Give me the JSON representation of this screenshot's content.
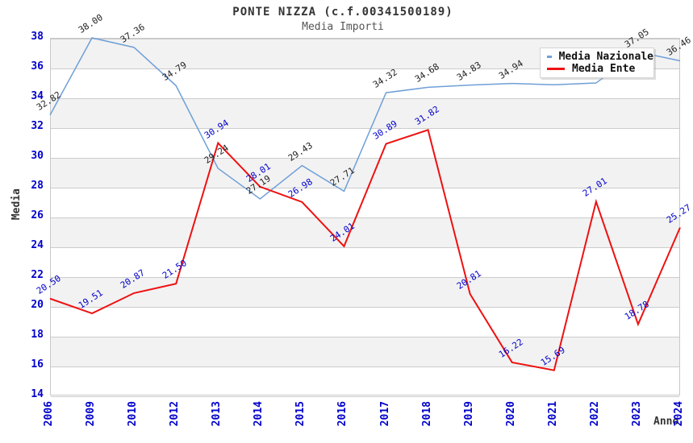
{
  "chart_data": {
    "type": "line",
    "title": "PONTE NIZZA (c.f.00341500189)",
    "subtitle": "Media Importi",
    "xlabel": "Anno",
    "ylabel": "Media",
    "ylim": [
      14,
      38
    ],
    "y_tick_step": 2,
    "y_ticks": [
      38,
      36,
      34,
      32,
      30,
      28,
      26,
      24,
      22,
      20,
      18,
      16,
      14
    ],
    "x": [
      "2006",
      "2009",
      "2010",
      "2012",
      "2013",
      "2014",
      "2015",
      "2016",
      "2017",
      "2018",
      "2019",
      "2020",
      "2021",
      "2022",
      "2023",
      "2024"
    ],
    "grid": "horizontal",
    "band_fill_alternating": true,
    "legend_position": "top-right",
    "series": [
      {
        "name": "Media Nazionale",
        "color": "#6f9fd8",
        "label_color": "#222222",
        "values": [
          32.82,
          38.0,
          37.36,
          34.79,
          29.24,
          27.19,
          29.43,
          27.71,
          34.32,
          34.68,
          34.83,
          34.94,
          34.85,
          34.97,
          37.05,
          36.46
        ],
        "labels": [
          "32.82",
          "38.00",
          "37.36",
          "34.79",
          "29.24",
          "27.19",
          "29.43",
          "27.71",
          "34.32",
          "34.68",
          "34.83",
          "34.94",
          null,
          null,
          "37.05",
          "36.46"
        ]
      },
      {
        "name": "Media Ente",
        "color": "#ee1111",
        "label_color": "#0000cc",
        "values": [
          20.5,
          19.51,
          20.87,
          21.5,
          30.94,
          28.01,
          26.98,
          24.01,
          30.89,
          31.82,
          20.81,
          16.22,
          15.69,
          27.01,
          18.78,
          25.27
        ],
        "labels": [
          "20.50",
          "19.51",
          "20.87",
          "21.50",
          "30.94",
          "28.01",
          "26.98",
          "24.01",
          "30.89",
          "31.82",
          "20.81",
          "16.22",
          "15.69",
          "27.01",
          "18.78",
          "25.27"
        ]
      }
    ],
    "colors": {
      "axis_text": "#0000cc",
      "grid_line": "#cccccc",
      "band_fill": "#f2f2f2",
      "title": "#333333",
      "subtitle": "#555555"
    }
  }
}
